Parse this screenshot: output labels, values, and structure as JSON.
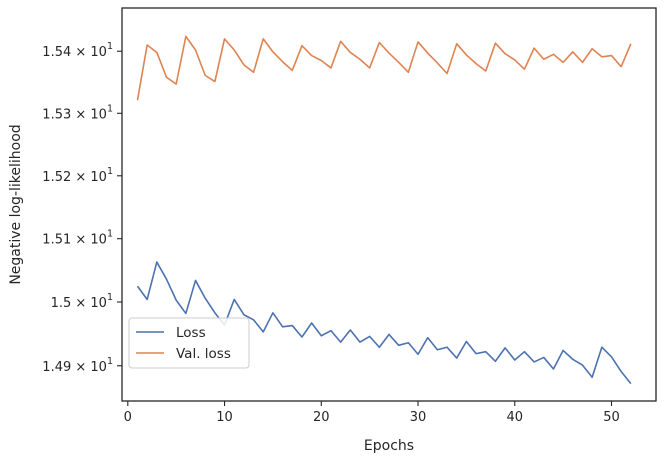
{
  "chart_data": {
    "type": "line",
    "title": "",
    "xlabel": "Epochs",
    "ylabel": "Negative log-likelihood",
    "xlim": [
      -0.6,
      54.6
    ],
    "ylim": [
      14.845,
      15.47
    ],
    "yscale": "log",
    "grid": false,
    "legend_position": "bottom-left",
    "x_ticks": [
      {
        "value": 0,
        "label": "0"
      },
      {
        "value": 10,
        "label": "10"
      },
      {
        "value": 20,
        "label": "20"
      },
      {
        "value": 30,
        "label": "30"
      },
      {
        "value": 40,
        "label": "40"
      },
      {
        "value": 50,
        "label": "50"
      }
    ],
    "y_ticks": [
      {
        "value": 14.9,
        "mantissa": "1.49",
        "exp": "1"
      },
      {
        "value": 15.0,
        "mantissa": "1.5",
        "exp": "1"
      },
      {
        "value": 15.1,
        "mantissa": "1.51",
        "exp": "1"
      },
      {
        "value": 15.2,
        "mantissa": "1.52",
        "exp": "1"
      },
      {
        "value": 15.3,
        "mantissa": "1.53",
        "exp": "1"
      },
      {
        "value": 15.4,
        "mantissa": "1.54",
        "exp": "1"
      }
    ],
    "x": [
      1,
      2,
      3,
      4,
      5,
      6,
      7,
      8,
      9,
      10,
      11,
      12,
      13,
      14,
      15,
      16,
      17,
      18,
      19,
      20,
      21,
      22,
      23,
      24,
      25,
      26,
      27,
      28,
      29,
      30,
      31,
      32,
      33,
      34,
      35,
      36,
      37,
      38,
      39,
      40,
      41,
      42,
      43,
      44,
      45,
      46,
      47,
      48,
      49,
      50,
      51,
      52
    ],
    "series": [
      {
        "name": "Loss",
        "color": "#4c72b0",
        "values": [
          15.025,
          15.004,
          15.063,
          15.036,
          15.003,
          14.982,
          15.034,
          15.006,
          14.983,
          14.964,
          15.004,
          14.98,
          14.972,
          14.953,
          14.983,
          14.961,
          14.963,
          14.945,
          14.967,
          14.947,
          14.955,
          14.937,
          14.956,
          14.937,
          14.946,
          14.929,
          14.949,
          14.932,
          14.936,
          14.918,
          14.944,
          14.925,
          14.929,
          14.912,
          14.938,
          14.919,
          14.922,
          14.907,
          14.928,
          14.909,
          14.922,
          14.906,
          14.913,
          14.895,
          14.924,
          14.91,
          14.901,
          14.882,
          14.929,
          14.914,
          14.891,
          14.872
        ]
      },
      {
        "name": "Val. loss",
        "color": "#dd8452",
        "values": [
          15.321,
          15.41,
          15.398,
          15.358,
          15.347,
          15.424,
          15.402,
          15.361,
          15.351,
          15.42,
          15.402,
          15.378,
          15.366,
          15.42,
          15.399,
          15.383,
          15.369,
          15.409,
          15.393,
          15.385,
          15.373,
          15.416,
          15.398,
          15.387,
          15.373,
          15.414,
          15.397,
          15.382,
          15.366,
          15.415,
          15.397,
          15.381,
          15.364,
          15.412,
          15.394,
          15.38,
          15.368,
          15.413,
          15.396,
          15.386,
          15.371,
          15.405,
          15.387,
          15.395,
          15.382,
          15.399,
          15.382,
          15.404,
          15.391,
          15.393,
          15.375,
          15.412
        ]
      }
    ]
  }
}
